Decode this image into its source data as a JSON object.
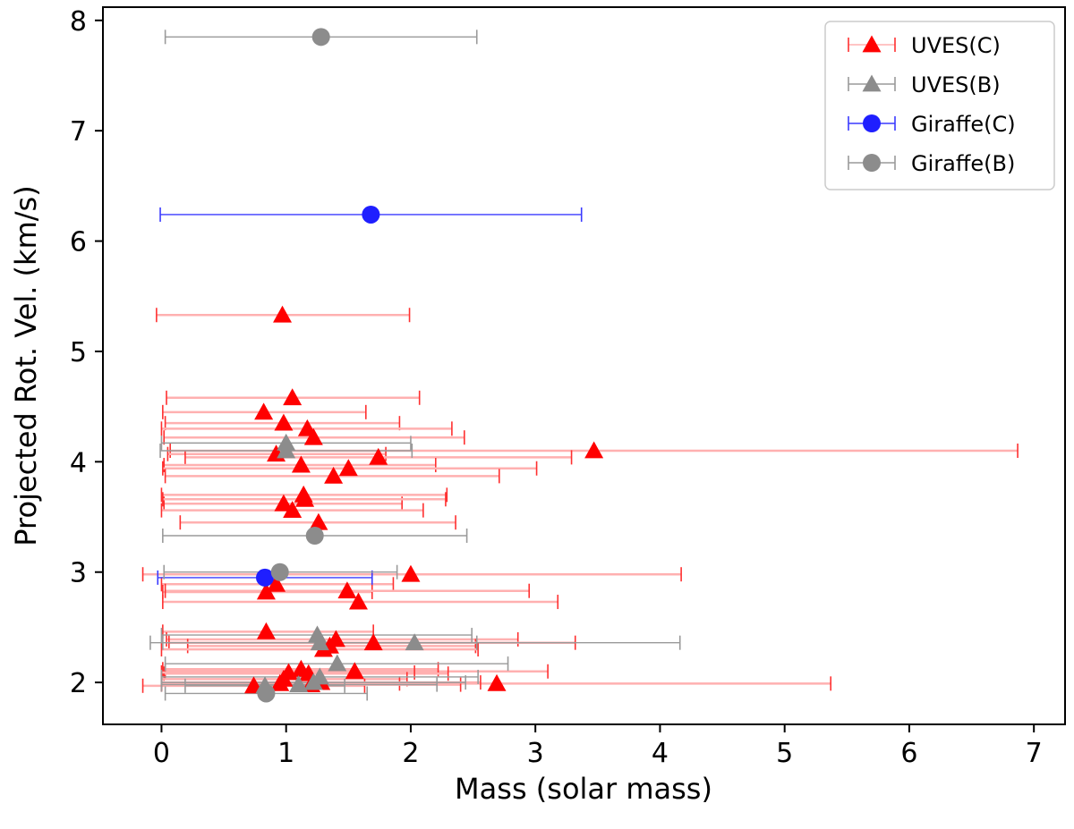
{
  "chart_data": {
    "type": "scatter",
    "title": "",
    "xlabel": "Mass (solar mass)",
    "ylabel": "Projected Rot. Vel. (km/s)",
    "xlim": [
      -0.47,
      7.25
    ],
    "ylim": [
      1.62,
      8.12
    ],
    "xticks": [
      0,
      1,
      2,
      3,
      4,
      5,
      6,
      7
    ],
    "yticks": [
      2,
      3,
      4,
      5,
      6,
      7,
      8
    ],
    "grid": false,
    "legend_position": "top-right",
    "series": [
      {
        "name": "UVES(C)",
        "marker": "triangle",
        "color": "#ff0000",
        "errcolor": "#ffb0b0",
        "points": [
          {
            "x": 0.97,
            "y": 5.33,
            "xmin": -0.04,
            "xmax": 1.99
          },
          {
            "x": 1.05,
            "y": 4.58,
            "xmin": 0.04,
            "xmax": 2.07
          },
          {
            "x": 0.82,
            "y": 4.45,
            "xmin": 0.01,
            "xmax": 1.64
          },
          {
            "x": 0.98,
            "y": 4.35,
            "xmin": 0.03,
            "xmax": 1.91
          },
          {
            "x": 1.17,
            "y": 4.3,
            "xmin": 0.0,
            "xmax": 2.33
          },
          {
            "x": 1.22,
            "y": 4.22,
            "xmin": 0.02,
            "xmax": 2.43
          },
          {
            "x": 3.47,
            "y": 4.1,
            "xmin": 0.07,
            "xmax": 6.87
          },
          {
            "x": 0.92,
            "y": 4.07,
            "xmin": 0.05,
            "xmax": 1.8
          },
          {
            "x": 1.74,
            "y": 4.04,
            "xmin": 0.19,
            "xmax": 3.29
          },
          {
            "x": 1.12,
            "y": 3.97,
            "xmin": 0.02,
            "xmax": 2.2
          },
          {
            "x": 1.5,
            "y": 3.94,
            "xmin": 0.01,
            "xmax": 3.01
          },
          {
            "x": 1.38,
            "y": 3.87,
            "xmin": 0.03,
            "xmax": 2.71
          },
          {
            "x": 1.14,
            "y": 3.7,
            "xmin": 0.0,
            "xmax": 2.29
          },
          {
            "x": 0.98,
            "y": 3.62,
            "xmin": 0.02,
            "xmax": 1.93
          },
          {
            "x": 1.15,
            "y": 3.66,
            "xmin": 0.01,
            "xmax": 2.28
          },
          {
            "x": 1.05,
            "y": 3.56,
            "xmin": 0.0,
            "xmax": 2.1
          },
          {
            "x": 1.26,
            "y": 3.45,
            "xmin": 0.15,
            "xmax": 2.36
          },
          {
            "x": 2.0,
            "y": 2.98,
            "xmin": -0.15,
            "xmax": 4.17
          },
          {
            "x": 0.92,
            "y": 2.89,
            "xmin": 0.0,
            "xmax": 1.86
          },
          {
            "x": 0.84,
            "y": 2.82,
            "xmin": 0.01,
            "xmax": 1.69
          },
          {
            "x": 1.49,
            "y": 2.83,
            "xmin": 0.03,
            "xmax": 2.95
          },
          {
            "x": 1.58,
            "y": 2.73,
            "xmin": 0.01,
            "xmax": 3.18
          },
          {
            "x": 0.84,
            "y": 2.46,
            "xmin": 0.01,
            "xmax": 1.7
          },
          {
            "x": 1.4,
            "y": 2.39,
            "xmin": 0.04,
            "xmax": 2.86
          },
          {
            "x": 1.35,
            "y": 2.33,
            "xmin": 0.21,
            "xmax": 2.52
          },
          {
            "x": 1.7,
            "y": 2.36,
            "xmin": 0.06,
            "xmax": 3.32
          },
          {
            "x": 1.3,
            "y": 2.3,
            "xmin": 0.0,
            "xmax": 2.54
          },
          {
            "x": 1.55,
            "y": 2.1,
            "xmin": 0.03,
            "xmax": 3.1
          },
          {
            "x": 1.12,
            "y": 2.12,
            "xmin": 0.01,
            "xmax": 2.22
          },
          {
            "x": 1.18,
            "y": 2.08,
            "xmin": 0.02,
            "xmax": 2.3
          },
          {
            "x": 1.02,
            "y": 2.09,
            "xmin": 0.0,
            "xmax": 2.03
          },
          {
            "x": 0.98,
            "y": 2.03,
            "xmin": 0.0,
            "xmax": 1.97
          },
          {
            "x": 2.69,
            "y": 1.99,
            "xmin": 0.0,
            "xmax": 5.37
          },
          {
            "x": 0.74,
            "y": 1.97,
            "xmin": -0.15,
            "xmax": 1.63
          },
          {
            "x": 0.95,
            "y": 1.99,
            "xmin": 0.0,
            "xmax": 1.91
          },
          {
            "x": 1.2,
            "y": 1.98,
            "xmin": 0.0,
            "xmax": 2.4
          },
          {
            "x": 1.28,
            "y": 2.0,
            "xmin": 0.0,
            "xmax": 2.56
          }
        ]
      },
      {
        "name": "UVES(B)",
        "marker": "triangle",
        "color": "#8c8c8c",
        "errcolor": "#9a9a9a",
        "points": [
          {
            "x": 1.0,
            "y": 4.1,
            "xmin": -0.01,
            "xmax": 2.01
          },
          {
            "x": 1.0,
            "y": 4.17,
            "xmin": 0.0,
            "xmax": 2.0
          },
          {
            "x": 1.25,
            "y": 2.43,
            "xmin": 0.0,
            "xmax": 2.49
          },
          {
            "x": 2.03,
            "y": 2.36,
            "xmin": -0.09,
            "xmax": 4.16
          },
          {
            "x": 1.27,
            "y": 2.36,
            "xmin": 0.01,
            "xmax": 2.53
          },
          {
            "x": 1.41,
            "y": 2.17,
            "xmin": 0.03,
            "xmax": 2.78
          },
          {
            "x": 1.27,
            "y": 2.05,
            "xmin": 0.0,
            "xmax": 2.54
          },
          {
            "x": 1.22,
            "y": 2.0,
            "xmin": 0.0,
            "xmax": 2.44
          },
          {
            "x": 1.1,
            "y": 1.98,
            "xmin": 0.0,
            "xmax": 2.21
          },
          {
            "x": 0.83,
            "y": 1.97,
            "xmin": 0.19,
            "xmax": 1.47
          }
        ]
      },
      {
        "name": "Giraffe(C)",
        "marker": "circle",
        "color": "#1f1fff",
        "errcolor": "#3a3aff",
        "points": [
          {
            "x": 1.68,
            "y": 6.24,
            "xmin": -0.01,
            "xmax": 3.37
          },
          {
            "x": 0.83,
            "y": 2.95,
            "xmin": -0.03,
            "xmax": 1.69
          }
        ]
      },
      {
        "name": "Giraffe(B)",
        "marker": "circle",
        "color": "#8c8c8c",
        "errcolor": "#9a9a9a",
        "points": [
          {
            "x": 1.28,
            "y": 7.85,
            "xmin": 0.03,
            "xmax": 2.53
          },
          {
            "x": 1.23,
            "y": 3.33,
            "xmin": 0.01,
            "xmax": 2.45
          },
          {
            "x": 0.95,
            "y": 3.0,
            "xmin": 0.02,
            "xmax": 1.89
          },
          {
            "x": 0.84,
            "y": 1.9,
            "xmin": 0.03,
            "xmax": 1.65
          }
        ]
      }
    ]
  }
}
